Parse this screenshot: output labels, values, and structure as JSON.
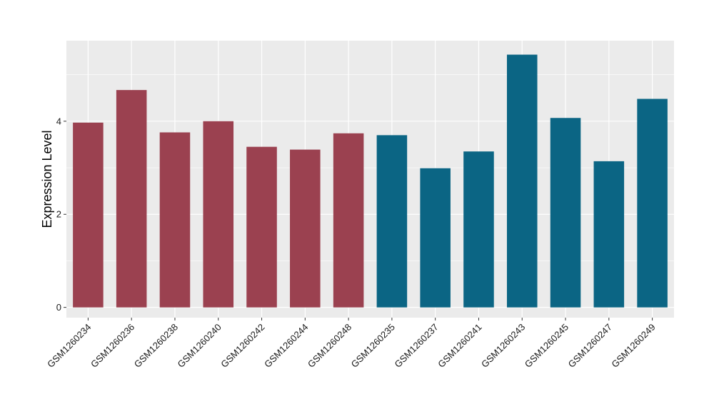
{
  "chart_data": {
    "type": "bar",
    "title": "",
    "xlabel": "",
    "ylabel": "Expression Level",
    "ylim": [
      -0.22,
      5.73
    ],
    "yticks": [
      0,
      2,
      4
    ],
    "grid": true,
    "categories": [
      "GSM1260234",
      "GSM1260236",
      "GSM1260238",
      "GSM1260240",
      "GSM1260242",
      "GSM1260244",
      "GSM1260248",
      "GSM1260235",
      "GSM1260237",
      "GSM1260241",
      "GSM1260243",
      "GSM1260245",
      "GSM1260247",
      "GSM1260249"
    ],
    "values": [
      3.97,
      4.67,
      3.76,
      4.0,
      3.45,
      3.39,
      3.74,
      3.7,
      2.99,
      3.35,
      5.43,
      4.07,
      3.14,
      4.48
    ],
    "bar_colors": [
      "#9b4150",
      "#9b4150",
      "#9b4150",
      "#9b4150",
      "#9b4150",
      "#9b4150",
      "#9b4150",
      "#0b6584",
      "#0b6584",
      "#0b6584",
      "#0b6584",
      "#0b6584",
      "#0b6584",
      "#0b6584"
    ]
  },
  "colors": {
    "panel_background": "#ebebeb",
    "grid_line": "#ffffff",
    "group_a": "#9b4150",
    "group_b": "#0b6584"
  }
}
